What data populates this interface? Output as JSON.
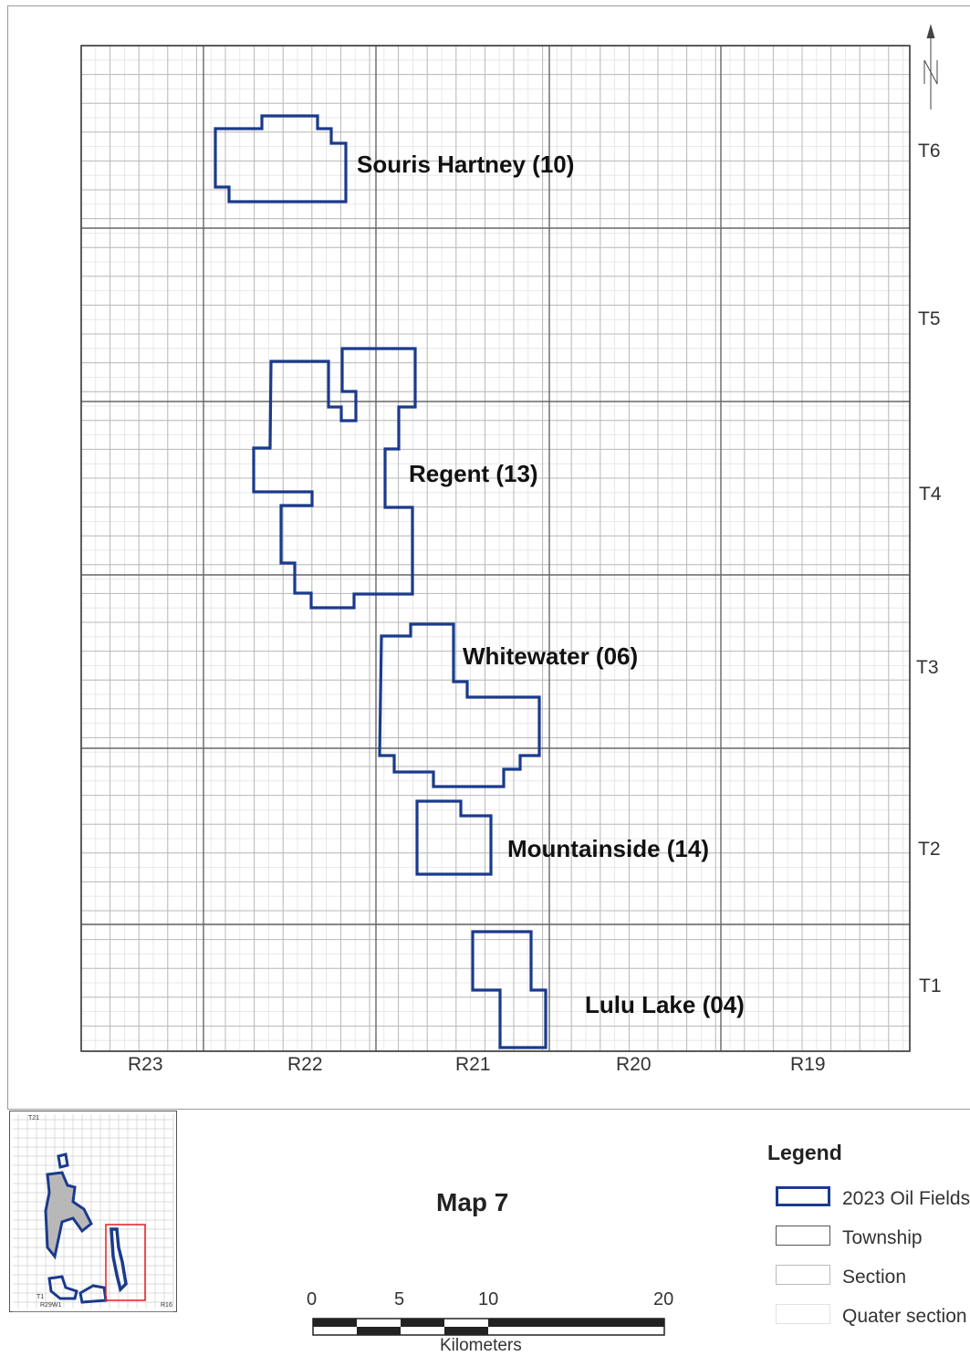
{
  "map": {
    "fields": [
      {
        "id": "souris-hartney",
        "label": "Souris Hartney (10)"
      },
      {
        "id": "regent",
        "label": "Regent (13)"
      },
      {
        "id": "whitewater",
        "label": "Whitewater (06)"
      },
      {
        "id": "mountainside",
        "label": "Mountainside (14)"
      },
      {
        "id": "lulu-lake",
        "label": "Lulu Lake (04)"
      }
    ],
    "townships": [
      "T6",
      "T5",
      "T4",
      "T3",
      "T2",
      "T1"
    ],
    "ranges": [
      "R23",
      "R22",
      "R21",
      "R20",
      "R19"
    ],
    "north_arrow": "north-arrow-icon"
  },
  "title": "Map 7",
  "legend": {
    "title": "Legend",
    "items": [
      {
        "label": "2023 Oil Fields",
        "color": "#1a3a8c"
      },
      {
        "label": "Township",
        "color": "#555555"
      },
      {
        "label": "Section",
        "color": "#bbbbbb"
      },
      {
        "label": "Quater section",
        "color": "#e2e2e2"
      }
    ]
  },
  "scale": {
    "ticks": [
      "0",
      "5",
      "10",
      "20"
    ],
    "unit": "Kilometers"
  },
  "inset": {
    "top_label": "T21",
    "bottom_left_label": "T1",
    "bottom_range_label": "R29W1",
    "bottom_right_label": "R16"
  },
  "colors": {
    "field_outline": "#1a3a8c",
    "inset_highlight": "#e02020"
  }
}
